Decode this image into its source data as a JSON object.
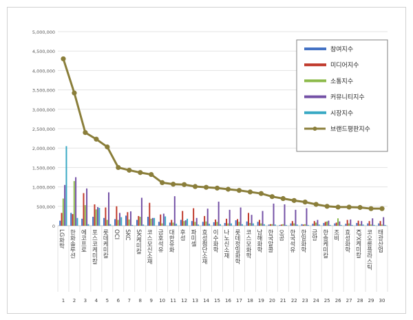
{
  "chart_data": {
    "type": "bar",
    "categories": [
      "LG화학",
      "한화솔루션",
      "에코프로",
      "포스코케미칼",
      "롯데케미칼",
      "OCI",
      "SKC",
      "SK케미칼",
      "코스모신소재",
      "금호석유",
      "대한유화",
      "후성",
      "파미셀",
      "효성첨단소재",
      "이수화학",
      "나노신소재",
      "롯데정밀화학",
      "코스모화학",
      "남해화학",
      "한국알콜",
      "오공",
      "한국석유",
      "한일화학",
      "금양",
      "한솔케미칼",
      "조비",
      "효성화학",
      "KPX케미칼",
      "코오롱플라스틱",
      "태광산업"
    ],
    "ranks": [
      "1",
      "2",
      "3",
      "4",
      "5",
      "6",
      "7",
      "8",
      "9",
      "10",
      "11",
      "12",
      "13",
      "14",
      "15",
      "16",
      "17",
      "18",
      "19",
      "20",
      "21",
      "22",
      "23",
      "24",
      "25",
      "26",
      "27",
      "28",
      "29",
      "30"
    ],
    "series": [
      {
        "name": "참여지수",
        "color": "#4472c4",
        "values": [
          130000,
          330000,
          180000,
          230000,
          200000,
          170000,
          260000,
          150000,
          230000,
          100000,
          80000,
          150000,
          120000,
          100000,
          90000,
          70000,
          140000,
          110000,
          100000,
          30000,
          20000,
          60000,
          40000,
          50000,
          70000,
          60000,
          50000,
          70000,
          60000,
          60000
        ]
      },
      {
        "name": "미디어지수",
        "color": "#c0392b",
        "values": [
          330000,
          300000,
          840000,
          550000,
          470000,
          500000,
          350000,
          250000,
          590000,
          290000,
          150000,
          380000,
          450000,
          250000,
          160000,
          180000,
          170000,
          330000,
          150000,
          40000,
          30000,
          120000,
          30000,
          120000,
          100000,
          80000,
          150000,
          130000,
          120000,
          120000
        ]
      },
      {
        "name": "소통지수",
        "color": "#8dba4b",
        "values": [
          700000,
          1150000,
          530000,
          420000,
          150000,
          150000,
          160000,
          230000,
          180000,
          60000,
          80000,
          120000,
          100000,
          110000,
          100000,
          60000,
          100000,
          70000,
          60000,
          40000,
          40000,
          60000,
          40000,
          80000,
          110000,
          190000,
          60000,
          40000,
          30000,
          30000
        ]
      },
      {
        "name": "커뮤니티지수",
        "color": "#7451a6",
        "values": [
          1050000,
          1250000,
          960000,
          480000,
          860000,
          330000,
          370000,
          720000,
          200000,
          310000,
          760000,
          140000,
          200000,
          440000,
          620000,
          410000,
          470000,
          280000,
          380000,
          570000,
          550000,
          410000,
          450000,
          150000,
          130000,
          110000,
          160000,
          120000,
          190000,
          220000
        ]
      },
      {
        "name": "시장지수",
        "color": "#39a9c4",
        "values": [
          2050000,
          200000,
          40000,
          460000,
          40000,
          220000,
          20000,
          30000,
          200000,
          240000,
          50000,
          180000,
          30000,
          50000,
          40000,
          60000,
          40000,
          60000,
          40000,
          30000,
          20000,
          30000,
          20000,
          30000,
          20000,
          20000,
          20000,
          30000,
          20000,
          20000
        ]
      },
      {
        "name": "브랜드평판지수",
        "color": "#8a7e3a",
        "type": "line",
        "values": [
          4300000,
          3420000,
          2400000,
          2230000,
          2030000,
          1500000,
          1430000,
          1370000,
          1320000,
          1110000,
          1070000,
          1060000,
          1010000,
          990000,
          970000,
          940000,
          910000,
          870000,
          830000,
          750000,
          700000,
          650000,
          610000,
          550000,
          500000,
          480000,
          480000,
          470000,
          440000,
          440000
        ]
      }
    ],
    "yticks": [
      "0",
      "500,000",
      "1,000,000",
      "1,500,000",
      "2,000,000",
      "2,500,000",
      "3,000,000",
      "3,500,000",
      "4,000,000",
      "4,500,000",
      "5,000,000"
    ],
    "ylim": [
      0,
      5000000
    ],
    "legend": "top-right",
    "title": ""
  }
}
